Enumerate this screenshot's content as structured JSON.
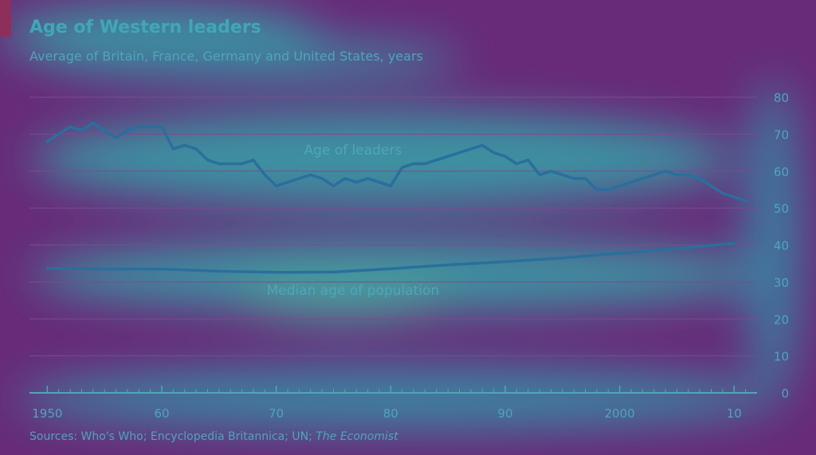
{
  "header": {
    "title": "Age of Western leaders",
    "subtitle": "Average of Britain, France, Germany and United States, years"
  },
  "footer": {
    "sources_prefix": "Sources: Who's Who; Encyclopedia Britannica; UN;",
    "sources_italic": "The Economist"
  },
  "colors": {
    "background": "#682b7a",
    "glow": "#38bdb0",
    "line": "#2a6f9c",
    "text": "#4ea6b9",
    "grid": "#7d4a90"
  },
  "chart_data": {
    "type": "line",
    "title": "Age of Western leaders",
    "subtitle": "Average of Britain, France, Germany and United States, years",
    "xlim": [
      1949,
      2012
    ],
    "ylim": [
      0,
      80
    ],
    "y_ticks": [
      0,
      10,
      20,
      30,
      40,
      50,
      60,
      70,
      80
    ],
    "y_axis_side": "right",
    "x_tick_labels": [
      {
        "x": 1950,
        "label": "1950"
      },
      {
        "x": 1960,
        "label": "60"
      },
      {
        "x": 1970,
        "label": "70"
      },
      {
        "x": 1980,
        "label": "80"
      },
      {
        "x": 1990,
        "label": "90"
      },
      {
        "x": 2000,
        "label": "2000"
      },
      {
        "x": 2010,
        "label": "10"
      }
    ],
    "grid": true,
    "series": [
      {
        "name": "Age of leaders",
        "x": [
          1950,
          1951,
          1952,
          1953,
          1954,
          1955,
          1956,
          1957,
          1958,
          1959,
          1960,
          1961,
          1962,
          1963,
          1964,
          1965,
          1966,
          1967,
          1968,
          1969,
          1970,
          1971,
          1972,
          1973,
          1974,
          1975,
          1976,
          1977,
          1978,
          1979,
          1980,
          1981,
          1982,
          1983,
          1984,
          1985,
          1986,
          1987,
          1988,
          1989,
          1990,
          1991,
          1992,
          1993,
          1994,
          1995,
          1996,
          1997,
          1998,
          1999,
          2000,
          2001,
          2002,
          2003,
          2004,
          2005,
          2006,
          2007,
          2008,
          2009,
          2010,
          2011
        ],
        "values": [
          68,
          70,
          72,
          71,
          73,
          71,
          69,
          71,
          72,
          72,
          72,
          66,
          67,
          66,
          63,
          62,
          62,
          62,
          63,
          59,
          56,
          57,
          58,
          59,
          58,
          56,
          58,
          57,
          58,
          57,
          56,
          61,
          62,
          62,
          63,
          64,
          65,
          66,
          67,
          65,
          64,
          62,
          63,
          59,
          60,
          59,
          58,
          58,
          55,
          55,
          56,
          57,
          58,
          59,
          60,
          59,
          59,
          58,
          56,
          54,
          53,
          52
        ],
        "label": "Age of leaders",
        "label_at": [
          1976,
          64.5
        ]
      },
      {
        "name": "Median age of population",
        "x": [
          1950,
          1955,
          1960,
          1965,
          1970,
          1975,
          1980,
          1985,
          1990,
          1995,
          2000,
          2005,
          2010
        ],
        "values": [
          33.7,
          33.5,
          33.5,
          32.9,
          32.6,
          32.7,
          33.6,
          34.6,
          35.5,
          36.5,
          37.8,
          39.0,
          40.5
        ],
        "label": "Median age of population",
        "label_at": [
          1976,
          26.5
        ]
      }
    ]
  }
}
